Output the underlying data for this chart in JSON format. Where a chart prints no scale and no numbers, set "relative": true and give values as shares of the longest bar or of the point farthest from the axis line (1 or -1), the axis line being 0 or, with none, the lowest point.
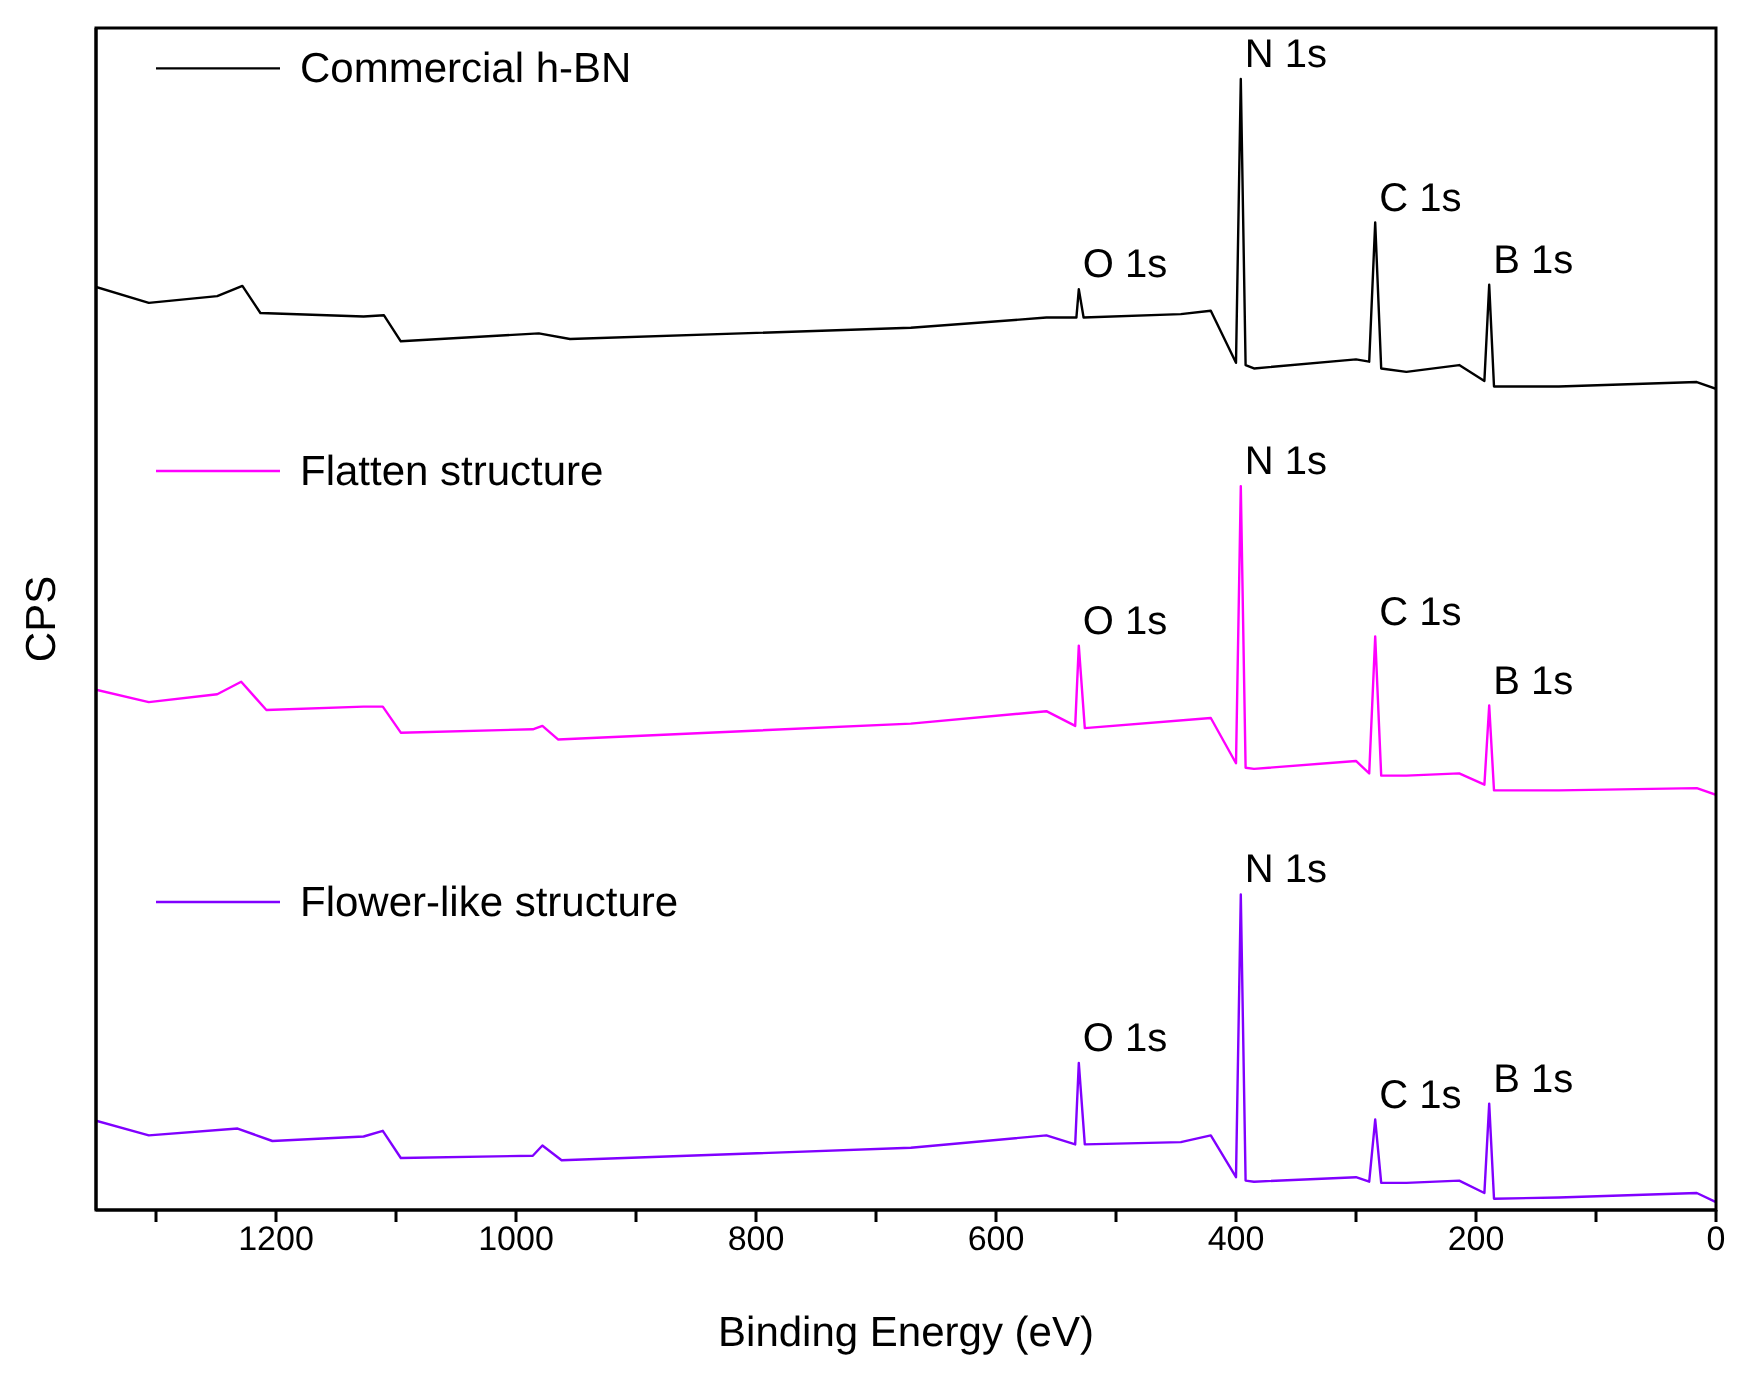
{
  "chart_data": {
    "type": "line",
    "relative": true,
    "xlabel": "Binding Energy (eV)",
    "ylabel": "CPS",
    "tick_labels": "x",
    "legend": "left",
    "marker": "none",
    "line_style": "solid",
    "xlim": [
      1350,
      0
    ],
    "xticks": [
      {
        "value": 1300,
        "label": null
      },
      1200,
      {
        "value": 1100,
        "label": null
      },
      1000,
      {
        "value": 900,
        "label": null
      },
      800,
      {
        "value": 700,
        "label": null
      },
      600,
      {
        "value": 500,
        "label": null
      },
      400,
      {
        "value": 300,
        "label": null
      },
      200,
      {
        "value": 100,
        "label": null
      },
      0
    ],
    "series": [
      {
        "name": "Commercial h-BN",
        "color": "#000000",
        "x": [
          1350,
          1306,
          1249,
          1228,
          1213,
          1127,
          1110,
          1096,
          981,
          955,
          671,
          558,
          533,
          531,
          527,
          446,
          421,
          400,
          396,
          392,
          385,
          300,
          289,
          284,
          279,
          258,
          214,
          193,
          189,
          185,
          131,
          16,
          0
        ],
        "values": [
          0.816,
          0.802,
          0.808,
          0.817,
          0.793,
          0.79,
          0.791,
          0.768,
          0.775,
          0.77,
          0.78,
          0.789,
          0.789,
          0.814,
          0.789,
          0.792,
          0.795,
          0.749,
          1,
          0.747,
          0.744,
          0.752,
          0.75,
          0.873,
          0.744,
          0.741,
          0.747,
          0.733,
          0.818,
          0.728,
          0.728,
          0.732,
          0.726
        ]
      },
      {
        "name": "Flatten structure",
        "color": "#ff00ff",
        "x": [
          1350,
          1306,
          1249,
          1229,
          1208,
          1127,
          1111,
          1096,
          986,
          978,
          965,
          671,
          558,
          534,
          531,
          526,
          421,
          400,
          396,
          392,
          385,
          300,
          289,
          284,
          279,
          258,
          214,
          193,
          189,
          185,
          131,
          16,
          0
        ],
        "values": [
          0.46,
          0.449,
          0.456,
          0.467,
          0.442,
          0.445,
          0.445,
          0.422,
          0.425,
          0.428,
          0.416,
          0.43,
          0.441,
          0.428,
          0.499,
          0.426,
          0.435,
          0.395,
          0.64,
          0.391,
          0.39,
          0.397,
          0.386,
          0.507,
          0.384,
          0.384,
          0.386,
          0.376,
          0.446,
          0.371,
          0.371,
          0.373,
          0.367
        ]
      },
      {
        "name": "Flower-like structure",
        "color": "#8000ff",
        "x": [
          1350,
          1306,
          1232,
          1203,
          1127,
          1111,
          1096,
          986,
          978,
          962,
          671,
          558,
          534,
          531,
          526,
          446,
          421,
          400,
          396,
          392,
          385,
          300,
          289,
          284,
          279,
          258,
          214,
          193,
          189,
          185,
          131,
          16,
          0
        ],
        "values": [
          0.079,
          0.066,
          0.072,
          0.061,
          0.065,
          0.07,
          0.046,
          0.048,
          0.057,
          0.044,
          0.055,
          0.066,
          0.058,
          0.13,
          0.058,
          0.06,
          0.066,
          0.029,
          0.279,
          0.026,
          0.025,
          0.029,
          0.025,
          0.08,
          0.024,
          0.024,
          0.026,
          0.015,
          0.094,
          0.01,
          0.011,
          0.015,
          0.007
        ]
      }
    ],
    "annotations": [
      {
        "text": "N 1s",
        "x": 396,
        "y": 1
      },
      {
        "text": "O 1s",
        "x": 531,
        "y": 0.814
      },
      {
        "text": "C 1s",
        "x": 284,
        "y": 0.873
      },
      {
        "text": "B 1s",
        "x": 189,
        "y": 0.818
      },
      {
        "text": "N 1s",
        "x": 396,
        "y": 0.64
      },
      {
        "text": "O 1s",
        "x": 531,
        "y": 0.499
      },
      {
        "text": "C 1s",
        "x": 284,
        "y": 0.507
      },
      {
        "text": "B 1s",
        "x": 189,
        "y": 0.446
      },
      {
        "text": "N 1s",
        "x": 396,
        "y": 0.279
      },
      {
        "text": "O 1s",
        "x": 531,
        "y": 0.13
      },
      {
        "text": "C 1s",
        "x": 284,
        "y": 0.08
      },
      {
        "text": "B 1s",
        "x": 189,
        "y": 0.094
      }
    ]
  }
}
